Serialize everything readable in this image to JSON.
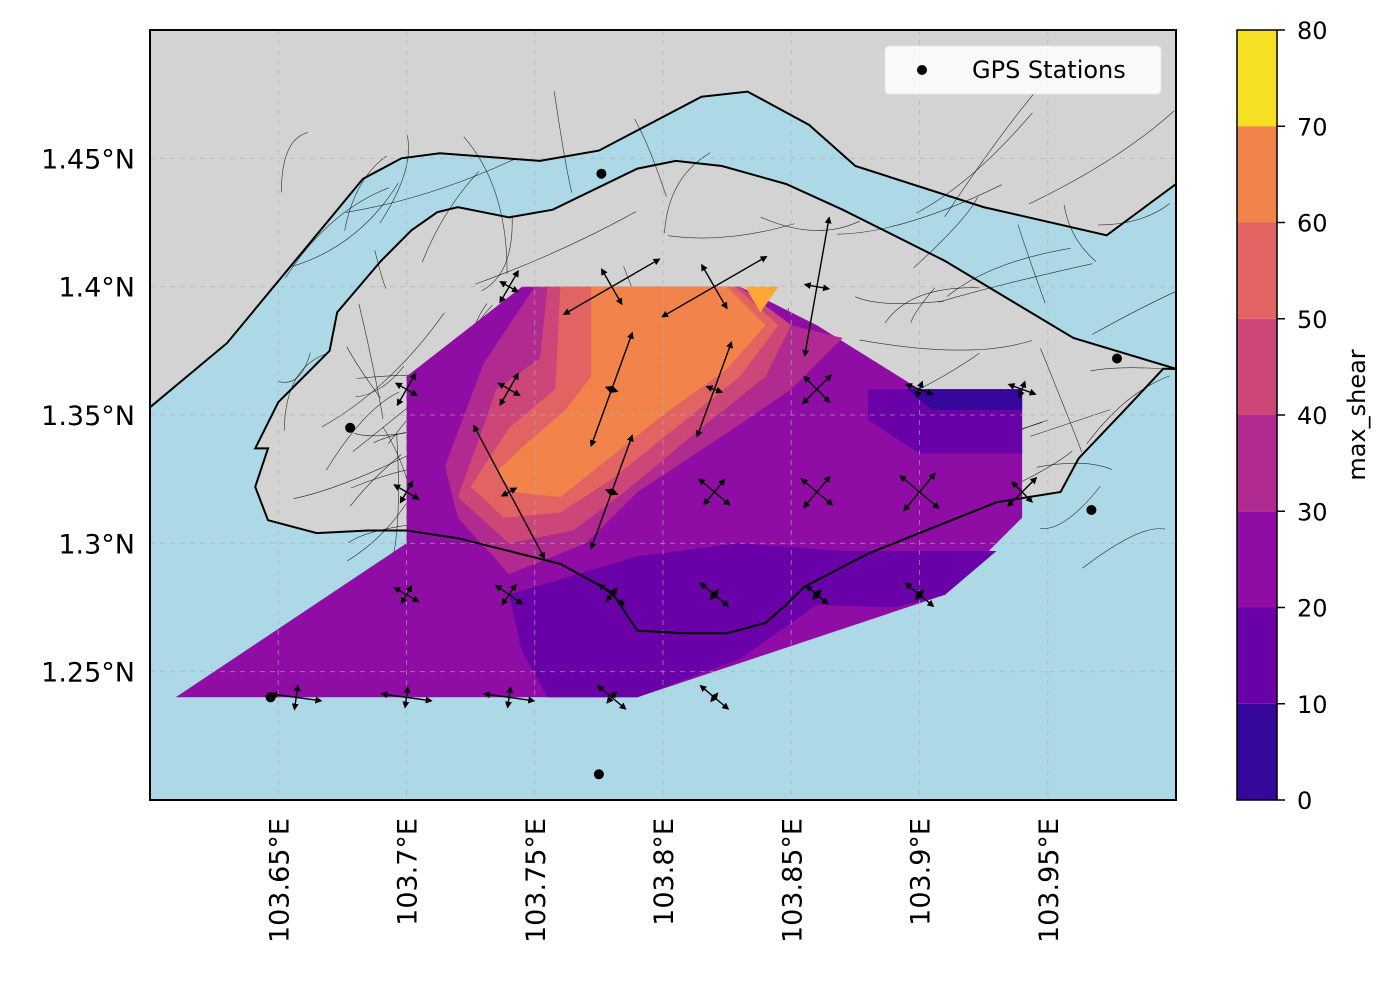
{
  "chart_data": {
    "type": "heatmap",
    "map_extent": {
      "lon": [
        103.6,
        104.0
      ],
      "lat": [
        1.2,
        1.5
      ]
    },
    "x_ticks": [
      {
        "value": 103.65,
        "label": "103.65°E"
      },
      {
        "value": 103.7,
        "label": "103.7°E"
      },
      {
        "value": 103.75,
        "label": "103.75°E"
      },
      {
        "value": 103.8,
        "label": "103.8°E"
      },
      {
        "value": 103.85,
        "label": "103.85°E"
      },
      {
        "value": 103.9,
        "label": "103.9°E"
      },
      {
        "value": 103.95,
        "label": "103.95°E"
      }
    ],
    "y_ticks": [
      {
        "value": 1.25,
        "label": "1.25°N"
      },
      {
        "value": 1.3,
        "label": "1.3°N"
      },
      {
        "value": 1.35,
        "label": "1.35°N"
      },
      {
        "value": 1.4,
        "label": "1.4°N"
      },
      {
        "value": 1.45,
        "label": "1.45°N"
      }
    ],
    "grid": true,
    "colors": {
      "ocean": "#add8e6",
      "land": "#d3d3d3",
      "coastline": "#000000",
      "faults": "#000000"
    },
    "colorbar": {
      "label": "max_shear",
      "ticks": [
        0,
        10,
        20,
        30,
        40,
        50,
        60,
        70,
        80
      ],
      "levels": [
        {
          "range": [
            0,
            10
          ],
          "color": "#35079a"
        },
        {
          "range": [
            10,
            20
          ],
          "color": "#6a00a8"
        },
        {
          "range": [
            20,
            30
          ],
          "color": "#8f0da4"
        },
        {
          "range": [
            30,
            40
          ],
          "color": "#b12a90"
        },
        {
          "range": [
            40,
            50
          ],
          "color": "#cc4778"
        },
        {
          "range": [
            50,
            60
          ],
          "color": "#e16462"
        },
        {
          "range": [
            60,
            70
          ],
          "color": "#f2844b"
        },
        {
          "range": [
            70,
            80
          ],
          "color": "#fca636"
        },
        {
          "range": [
            80,
            90
          ],
          "color": "#f0f921"
        }
      ]
    },
    "legend": {
      "label": "GPS Stations",
      "position": "upper-right"
    },
    "gps_stations": [
      {
        "lon": 103.647,
        "lat": 1.24
      },
      {
        "lon": 103.678,
        "lat": 1.345
      },
      {
        "lon": 103.776,
        "lat": 1.444
      },
      {
        "lon": 103.775,
        "lat": 1.21
      },
      {
        "lon": 103.967,
        "lat": 1.313
      },
      {
        "lon": 103.977,
        "lat": 1.372
      }
    ],
    "shear_contours": [
      {
        "level": "20-30",
        "color": "#8f0da4",
        "polygon": [
          [
            103.7,
            1.365
          ],
          [
            103.745,
            1.4
          ],
          [
            103.83,
            1.4
          ],
          [
            103.86,
            1.385
          ],
          [
            103.9,
            1.36
          ],
          [
            103.94,
            1.36
          ],
          [
            103.94,
            1.31
          ],
          [
            103.91,
            1.28
          ],
          [
            103.79,
            1.24
          ],
          [
            103.61,
            1.24
          ],
          [
            103.7,
            1.3
          ]
        ]
      },
      {
        "level": "10-20",
        "color": "#6a00a8",
        "polygon": [
          [
            103.74,
            1.28
          ],
          [
            103.79,
            1.295
          ],
          [
            103.83,
            1.3
          ],
          [
            103.87,
            1.297
          ],
          [
            103.93,
            1.297
          ],
          [
            103.91,
            1.28
          ],
          [
            103.89,
            1.275
          ],
          [
            103.86,
            1.276
          ],
          [
            103.83,
            1.255
          ],
          [
            103.79,
            1.24
          ],
          [
            103.755,
            1.24
          ],
          [
            103.745,
            1.258
          ]
        ]
      },
      {
        "level": "10-20",
        "color": "#6a00a8",
        "polygon": [
          [
            103.88,
            1.36
          ],
          [
            103.94,
            1.36
          ],
          [
            103.94,
            1.335
          ],
          [
            103.9,
            1.335
          ],
          [
            103.88,
            1.348
          ]
        ]
      },
      {
        "level": "0-10",
        "color": "#35079a",
        "polygon": [
          [
            103.895,
            1.36
          ],
          [
            103.94,
            1.36
          ],
          [
            103.94,
            1.352
          ],
          [
            103.905,
            1.352
          ]
        ]
      },
      {
        "level": "30-40",
        "color": "#b12a90",
        "polygon": [
          [
            103.73,
            1.37
          ],
          [
            103.75,
            1.4
          ],
          [
            103.83,
            1.4
          ],
          [
            103.85,
            1.385
          ],
          [
            103.87,
            1.38
          ],
          [
            103.85,
            1.36
          ],
          [
            103.825,
            1.343
          ],
          [
            103.79,
            1.32
          ],
          [
            103.77,
            1.3
          ],
          [
            103.74,
            1.288
          ],
          [
            103.72,
            1.31
          ],
          [
            103.715,
            1.33
          ]
        ]
      },
      {
        "level": "40-50",
        "color": "#cc4778",
        "polygon": [
          [
            103.735,
            1.36
          ],
          [
            103.752,
            1.372
          ],
          [
            103.755,
            1.4
          ],
          [
            103.83,
            1.4
          ],
          [
            103.85,
            1.385
          ],
          [
            103.84,
            1.365
          ],
          [
            103.815,
            1.345
          ],
          [
            103.785,
            1.32
          ],
          [
            103.765,
            1.305
          ],
          [
            103.74,
            1.3
          ],
          [
            103.72,
            1.318
          ],
          [
            103.728,
            1.34
          ]
        ]
      },
      {
        "level": "50-60",
        "color": "#e16462",
        "polygon": [
          [
            103.74,
            1.345
          ],
          [
            103.758,
            1.36
          ],
          [
            103.76,
            1.4
          ],
          [
            103.828,
            1.4
          ],
          [
            103.845,
            1.385
          ],
          [
            103.83,
            1.365
          ],
          [
            103.805,
            1.345
          ],
          [
            103.78,
            1.325
          ],
          [
            103.76,
            1.312
          ],
          [
            103.738,
            1.31
          ],
          [
            103.725,
            1.322
          ]
        ]
      },
      {
        "level": "60-70",
        "color": "#f2844b",
        "polygon": [
          [
            103.748,
            1.34
          ],
          [
            103.762,
            1.352
          ],
          [
            103.772,
            1.365
          ],
          [
            103.772,
            1.4
          ],
          [
            103.825,
            1.4
          ],
          [
            103.84,
            1.385
          ],
          [
            103.825,
            1.368
          ],
          [
            103.8,
            1.35
          ],
          [
            103.78,
            1.334
          ],
          [
            103.76,
            1.318
          ],
          [
            103.742,
            1.32
          ],
          [
            103.735,
            1.328
          ]
        ]
      },
      {
        "level": "70-80",
        "color": "#fca636",
        "polygon": [
          [
            103.832,
            1.4
          ],
          [
            103.845,
            1.4
          ],
          [
            103.838,
            1.39
          ]
        ]
      }
    ],
    "strain_crosses": [
      {
        "lon": 103.657,
        "lat": 1.24,
        "a": 25,
        "b": 12,
        "angle": -8
      },
      {
        "lon": 103.7,
        "lat": 1.24,
        "a": 25,
        "b": 10,
        "angle": -8
      },
      {
        "lon": 103.74,
        "lat": 1.24,
        "a": 25,
        "b": 10,
        "angle": -8
      },
      {
        "lon": 103.78,
        "lat": 1.24,
        "a": 18,
        "b": 7,
        "angle": -40
      },
      {
        "lon": 103.82,
        "lat": 1.24,
        "a": 18,
        "b": 5,
        "angle": -40
      },
      {
        "lon": 103.7,
        "lat": 1.28,
        "a": 14,
        "b": 10,
        "angle": -30
      },
      {
        "lon": 103.74,
        "lat": 1.28,
        "a": 16,
        "b": 12,
        "angle": -35
      },
      {
        "lon": 103.78,
        "lat": 1.28,
        "a": 16,
        "b": 8,
        "angle": -40
      },
      {
        "lon": 103.82,
        "lat": 1.28,
        "a": 18,
        "b": 6,
        "angle": -40
      },
      {
        "lon": 103.86,
        "lat": 1.28,
        "a": 14,
        "b": 6,
        "angle": -40
      },
      {
        "lon": 103.9,
        "lat": 1.28,
        "a": 18,
        "b": 6,
        "angle": -40
      },
      {
        "lon": 103.7,
        "lat": 1.32,
        "a": 14,
        "b": 12,
        "angle": -30
      },
      {
        "lon": 103.74,
        "lat": 1.32,
        "a": 75,
        "b": 8,
        "angle": -62
      },
      {
        "lon": 103.78,
        "lat": 1.32,
        "a": 60,
        "b": 6,
        "angle": 70
      },
      {
        "lon": 103.82,
        "lat": 1.32,
        "a": 20,
        "b": 16,
        "angle": -40
      },
      {
        "lon": 103.86,
        "lat": 1.32,
        "a": 20,
        "b": 20,
        "angle": -40
      },
      {
        "lon": 103.9,
        "lat": 1.32,
        "a": 25,
        "b": 24,
        "angle": -40
      },
      {
        "lon": 103.94,
        "lat": 1.32,
        "a": 20,
        "b": 14,
        "angle": 45
      },
      {
        "lon": 103.7,
        "lat": 1.36,
        "a": 18,
        "b": 12,
        "angle": 60
      },
      {
        "lon": 103.74,
        "lat": 1.36,
        "a": 18,
        "b": 12,
        "angle": 60
      },
      {
        "lon": 103.78,
        "lat": 1.36,
        "a": 60,
        "b": 6,
        "angle": 70
      },
      {
        "lon": 103.82,
        "lat": 1.36,
        "a": 50,
        "b": 8,
        "angle": 70
      },
      {
        "lon": 103.86,
        "lat": 1.36,
        "a": 20,
        "b": 18,
        "angle": 45
      },
      {
        "lon": 103.9,
        "lat": 1.36,
        "a": 14,
        "b": 8,
        "angle": -20
      },
      {
        "lon": 103.94,
        "lat": 1.36,
        "a": 14,
        "b": 8,
        "angle": -20
      },
      {
        "lon": 103.74,
        "lat": 1.4,
        "a": 18,
        "b": 10,
        "angle": 60
      },
      {
        "lon": 103.78,
        "lat": 1.4,
        "a": 55,
        "b": 20,
        "angle": 30
      },
      {
        "lon": 103.82,
        "lat": 1.4,
        "a": 60,
        "b": 25,
        "angle": 30
      },
      {
        "lon": 103.86,
        "lat": 1.4,
        "a": 70,
        "b": 12,
        "angle": 80
      }
    ],
    "coastline_outer": [
      [
        103.6,
        1.353
      ],
      [
        103.63,
        1.378
      ],
      [
        103.683,
        1.442
      ],
      [
        103.698,
        1.45
      ],
      [
        103.713,
        1.452
      ],
      [
        103.752,
        1.449
      ],
      [
        103.775,
        1.453
      ],
      [
        103.815,
        1.474
      ],
      [
        103.833,
        1.476
      ],
      [
        103.857,
        1.463
      ],
      [
        103.875,
        1.447
      ],
      [
        103.925,
        1.431
      ],
      [
        103.973,
        1.42
      ],
      [
        104.0,
        1.44
      ]
    ],
    "coastline_inner": [
      [
        103.641,
        1.337
      ],
      [
        103.65,
        1.355
      ],
      [
        103.67,
        1.375
      ],
      [
        103.673,
        1.39
      ],
      [
        103.69,
        1.41
      ],
      [
        103.702,
        1.422
      ],
      [
        103.712,
        1.429
      ],
      [
        103.72,
        1.431
      ],
      [
        103.74,
        1.427
      ],
      [
        103.757,
        1.43
      ],
      [
        103.79,
        1.446
      ],
      [
        103.805,
        1.449
      ],
      [
        103.823,
        1.447
      ],
      [
        103.848,
        1.44
      ],
      [
        103.87,
        1.43
      ],
      [
        103.91,
        1.41
      ],
      [
        103.96,
        1.38
      ],
      [
        104.0,
        1.368
      ],
      [
        103.995,
        1.368
      ],
      [
        103.98,
        1.352
      ],
      [
        103.962,
        1.333
      ],
      [
        103.955,
        1.32
      ],
      [
        103.93,
        1.316
      ],
      [
        103.91,
        1.308
      ],
      [
        103.88,
        1.296
      ],
      [
        103.855,
        1.283
      ],
      [
        103.848,
        1.276
      ],
      [
        103.84,
        1.269
      ],
      [
        103.825,
        1.265
      ],
      [
        103.808,
        1.265
      ],
      [
        103.79,
        1.266
      ],
      [
        103.78,
        1.281
      ],
      [
        103.76,
        1.292
      ],
      [
        103.72,
        1.302
      ],
      [
        103.7,
        1.305
      ],
      [
        103.685,
        1.305
      ],
      [
        103.665,
        1.304
      ],
      [
        103.646,
        1.309
      ],
      [
        103.641,
        1.322
      ],
      [
        103.646,
        1.337
      ]
    ]
  }
}
